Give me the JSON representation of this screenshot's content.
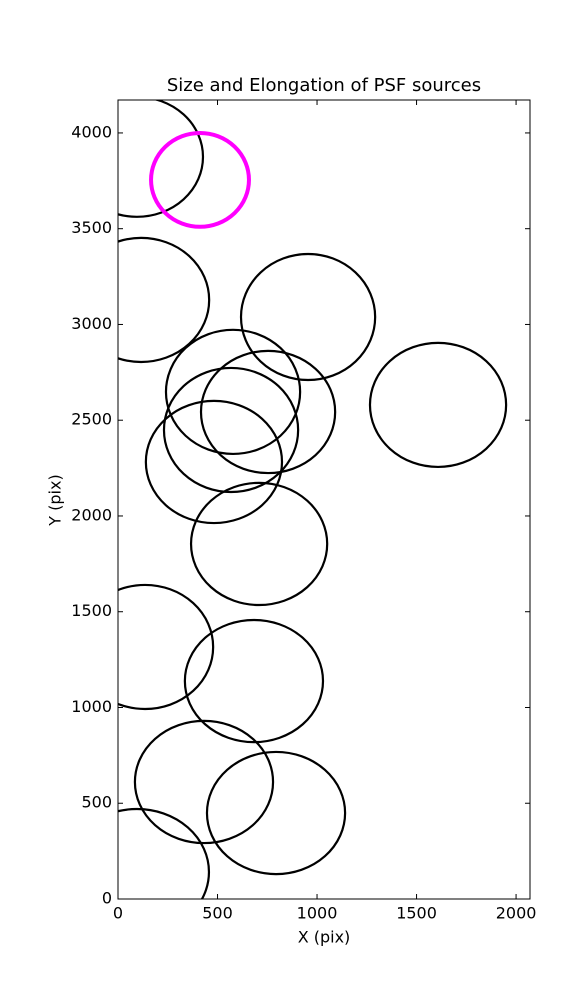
{
  "chart_data": {
    "type": "ellipse",
    "title": "Size and Elongation of PSF sources",
    "xlabel": "X (pix)",
    "ylabel": "Y (pix)",
    "x": [
      95,
      412,
      116,
      955,
      578,
      754,
      1608,
      568,
      482,
      709,
      136,
      683,
      432,
      794,
      95
    ],
    "y": [
      3875,
      3755,
      3128,
      3039,
      2648,
      2543,
      2580,
      2449,
      2282,
      1854,
      1316,
      1138,
      611,
      449,
      141
    ],
    "rx": [
      332,
      246,
      342,
      337,
      337,
      337,
      342,
      337,
      342,
      342,
      342,
      347,
      347,
      347,
      362
    ],
    "ry": [
      313,
      245,
      324,
      329,
      324,
      319,
      324,
      324,
      319,
      319,
      324,
      319,
      319,
      319,
      329
    ],
    "colors": [
      "#000000",
      "#ff00ff",
      "#000000",
      "#000000",
      "#000000",
      "#000000",
      "#000000",
      "#000000",
      "#000000",
      "#000000",
      "#000000",
      "#000000",
      "#000000",
      "#000000",
      "#000000"
    ],
    "xlim": [
      0,
      2070
    ],
    "ylim": [
      0,
      4172
    ],
    "xticks": [
      0,
      500,
      1000,
      1500,
      2000
    ],
    "yticks": [
      0,
      500,
      1000,
      1500,
      2000,
      2500,
      3000,
      3500,
      4000
    ],
    "grid": false
  }
}
